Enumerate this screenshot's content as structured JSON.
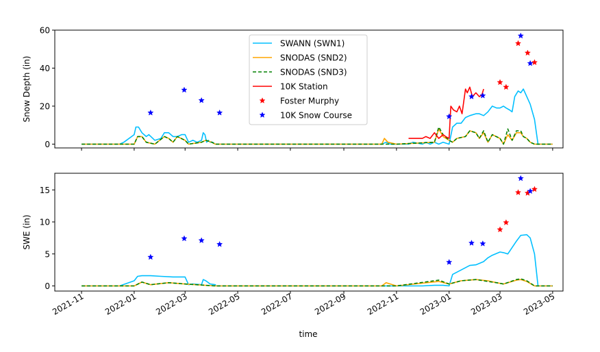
{
  "figure": {
    "x_axis_label": "time",
    "x_ticks": [
      "2021-11",
      "2022-01",
      "2022-03",
      "2022-05",
      "2022-07",
      "2022-09",
      "2022-11",
      "2023-01",
      "2023-03",
      "2023-05"
    ]
  },
  "legend": [
    {
      "label": "SWANN (SWN1)",
      "color": "#00bfff",
      "style": "solid"
    },
    {
      "label": "SNODAS (SND2)",
      "color": "#ffa500",
      "style": "solid"
    },
    {
      "label": "SNODAS (SND3)",
      "color": "#008000",
      "style": "dashed"
    },
    {
      "label": "10K Station",
      "color": "#ff0000",
      "style": "solid"
    },
    {
      "label": "Foster Murphy",
      "color": "#ff0000",
      "style": "star"
    },
    {
      "label": "10K Snow Course",
      "color": "#0000ff",
      "style": "star"
    }
  ],
  "chart_data": [
    {
      "type": "line",
      "ylabel": "Snow Depth (in)",
      "xlabel": "",
      "xlim": [
        "2021-10-01",
        "2023-05-13"
      ],
      "ylim": [
        -2,
        60
      ],
      "yticks": [
        0,
        20,
        40,
        60
      ],
      "series": [
        {
          "name": "SWANN (SWN1)",
          "x": [
            "2021-11-01",
            "2021-12-15",
            "2021-12-20",
            "2022-01-01",
            "2022-01-03",
            "2022-01-06",
            "2022-01-10",
            "2022-01-15",
            "2022-01-18",
            "2022-01-25",
            "2022-02-01",
            "2022-02-05",
            "2022-02-10",
            "2022-02-15",
            "2022-02-20",
            "2022-02-25",
            "2022-03-01",
            "2022-03-05",
            "2022-03-10",
            "2022-03-15",
            "2022-03-20",
            "2022-03-22",
            "2022-03-24",
            "2022-03-26",
            "2022-03-28",
            "2022-03-30",
            "2022-04-02",
            "2022-04-05",
            "2022-04-06",
            "2022-10-15",
            "2022-10-20",
            "2022-10-25",
            "2022-11-01",
            "2022-11-15",
            "2022-11-20",
            "2022-12-01",
            "2022-12-05",
            "2022-12-10",
            "2022-12-15",
            "2022-12-20",
            "2022-12-25",
            "2023-01-01",
            "2023-01-05",
            "2023-01-10",
            "2023-01-15",
            "2023-01-20",
            "2023-01-25",
            "2023-02-01",
            "2023-02-05",
            "2023-02-10",
            "2023-02-15",
            "2023-02-20",
            "2023-02-25",
            "2023-03-01",
            "2023-03-05",
            "2023-03-08",
            "2023-03-12",
            "2023-03-15",
            "2023-03-18",
            "2023-03-22",
            "2023-03-25",
            "2023-03-28",
            "2023-04-01",
            "2023-04-05",
            "2023-04-10",
            "2023-04-14",
            "2023-04-18",
            "2023-04-25",
            "2023-05-01"
          ],
          "values": [
            0,
            0,
            1,
            5,
            9,
            9,
            6,
            4,
            5,
            2,
            3,
            6,
            6,
            4,
            4,
            5,
            5,
            1,
            2,
            1,
            2,
            6,
            5,
            1,
            2,
            1,
            1,
            0,
            0,
            0,
            1,
            0,
            0,
            0,
            1,
            0,
            1,
            0,
            1,
            0,
            1,
            0,
            9,
            11,
            11,
            14,
            15,
            16,
            16,
            15,
            17,
            20,
            19,
            19,
            20,
            19,
            18,
            17,
            25,
            28,
            27,
            29,
            25,
            21,
            13,
            0,
            0,
            0,
            0
          ]
        },
        {
          "name": "SNODAS (SND2)",
          "x": [
            "2021-11-01",
            "2022-01-01",
            "2022-01-05",
            "2022-01-10",
            "2022-01-15",
            "2022-01-25",
            "2022-02-05",
            "2022-02-10",
            "2022-02-15",
            "2022-02-20",
            "2022-03-01",
            "2022-03-05",
            "2022-03-20",
            "2022-03-25",
            "2022-04-01",
            "2022-04-05",
            "2022-10-15",
            "2022-10-18",
            "2022-10-22",
            "2022-11-01",
            "2022-12-15",
            "2022-12-20",
            "2022-12-25",
            "2023-01-01",
            "2023-01-05",
            "2023-01-10",
            "2023-01-20",
            "2023-01-25",
            "2023-02-01",
            "2023-02-05",
            "2023-02-10",
            "2023-02-15",
            "2023-02-20",
            "2023-03-01",
            "2023-03-05",
            "2023-03-10",
            "2023-03-15",
            "2023-03-20",
            "2023-03-25",
            "2023-03-28",
            "2023-04-01",
            "2023-04-05",
            "2023-04-10",
            "2023-05-01"
          ],
          "values": [
            0,
            0,
            4,
            4,
            1,
            0,
            4,
            3,
            1,
            4,
            2,
            0,
            1,
            2,
            1,
            0,
            0,
            3,
            1,
            0,
            1,
            8,
            4,
            2,
            1,
            3,
            4,
            7,
            6,
            3,
            6,
            1,
            5,
            3,
            0,
            5,
            2,
            6,
            6,
            4,
            3,
            1,
            0,
            0
          ]
        },
        {
          "name": "SNODAS (SND3)",
          "x": [
            "2021-11-01",
            "2022-01-01",
            "2022-01-05",
            "2022-01-10",
            "2022-01-15",
            "2022-01-25",
            "2022-02-05",
            "2022-02-10",
            "2022-02-15",
            "2022-02-20",
            "2022-03-01",
            "2022-03-05",
            "2022-03-20",
            "2022-03-25",
            "2022-04-01",
            "2022-04-05",
            "2022-10-15",
            "2022-11-01",
            "2022-12-15",
            "2022-12-20",
            "2022-12-25",
            "2023-01-01",
            "2023-01-05",
            "2023-01-10",
            "2023-01-20",
            "2023-01-25",
            "2023-02-01",
            "2023-02-05",
            "2023-02-10",
            "2023-02-15",
            "2023-02-20",
            "2023-03-01",
            "2023-03-05",
            "2023-03-10",
            "2023-03-15",
            "2023-03-20",
            "2023-03-25",
            "2023-03-28",
            "2023-04-01",
            "2023-04-05",
            "2023-04-10",
            "2023-05-01"
          ],
          "values": [
            0,
            0,
            4,
            4,
            1,
            0,
            4,
            3,
            1,
            4,
            2,
            0,
            1,
            2,
            1,
            0,
            0,
            0,
            1,
            9,
            5,
            2,
            1,
            3,
            4,
            7,
            6,
            3,
            7,
            1,
            5,
            3,
            0,
            8,
            2,
            7,
            7,
            4,
            3,
            1,
            0,
            0
          ]
        },
        {
          "name": "10K Station",
          "x": [
            "2022-11-15",
            "2022-11-25",
            "2022-12-01",
            "2022-12-05",
            "2022-12-10",
            "2022-12-15",
            "2022-12-20",
            "2022-12-25",
            "2022-12-28",
            "2023-01-01",
            "2023-01-03",
            "2023-01-06",
            "2023-01-10",
            "2023-01-13",
            "2023-01-16",
            "2023-01-20",
            "2023-01-22",
            "2023-01-25",
            "2023-01-28",
            "2023-02-01",
            "2023-02-05",
            "2023-02-08",
            "2023-02-10"
          ],
          "values": [
            3,
            3,
            3,
            4,
            3,
            6,
            3,
            5,
            4,
            3,
            20,
            18,
            17,
            20,
            16,
            29,
            27,
            30,
            25,
            27,
            25,
            26,
            29
          ]
        },
        {
          "name": "Foster Murphy",
          "x": [
            "2023-03-01",
            "2023-03-08",
            "2023-03-22",
            "2023-04-02",
            "2023-04-10"
          ],
          "values": [
            32.5,
            30,
            53,
            48,
            43
          ]
        },
        {
          "name": "10K Snow Course",
          "x": [
            "2022-01-20",
            "2022-02-28",
            "2022-03-20",
            "2022-04-10",
            "2023-01-01",
            "2023-01-27",
            "2023-02-09",
            "2023-03-25",
            "2023-04-05"
          ],
          "values": [
            16.5,
            28.5,
            23,
            16.5,
            14.5,
            25,
            25.5,
            57,
            42.5
          ]
        }
      ]
    },
    {
      "type": "line",
      "ylabel": "SWE (in)",
      "xlabel": "time",
      "xlim": [
        "2021-10-01",
        "2023-05-13"
      ],
      "ylim": [
        -0.8,
        17.6
      ],
      "yticks": [
        0,
        5,
        10,
        15
      ],
      "series": [
        {
          "name": "SWANN (SWN1)",
          "x": [
            "2021-11-01",
            "2021-12-15",
            "2022-01-01",
            "2022-01-05",
            "2022-01-10",
            "2022-01-20",
            "2022-02-01",
            "2022-02-15",
            "2022-03-01",
            "2022-03-05",
            "2022-03-10",
            "2022-03-20",
            "2022-03-22",
            "2022-03-25",
            "2022-03-30",
            "2022-04-05",
            "2022-04-06",
            "2022-10-15",
            "2022-11-01",
            "2022-12-01",
            "2022-12-15",
            "2022-12-25",
            "2023-01-01",
            "2023-01-05",
            "2023-01-15",
            "2023-01-25",
            "2023-02-01",
            "2023-02-10",
            "2023-02-15",
            "2023-02-20",
            "2023-03-01",
            "2023-03-05",
            "2023-03-10",
            "2023-03-15",
            "2023-03-20",
            "2023-03-25",
            "2023-04-01",
            "2023-04-05",
            "2023-04-10",
            "2023-04-14",
            "2023-05-01"
          ],
          "values": [
            0,
            0,
            0.8,
            1.5,
            1.6,
            1.6,
            1.5,
            1.4,
            1.4,
            0.2,
            0.3,
            0.2,
            1.0,
            0.8,
            0.3,
            0.2,
            0,
            0,
            0,
            0,
            0.1,
            0.1,
            0,
            1.8,
            2.5,
            3.2,
            3.3,
            3.8,
            4.4,
            4.8,
            5.3,
            5.2,
            5.0,
            6.0,
            7.0,
            7.9,
            8.0,
            7.5,
            5.0,
            0,
            0
          ]
        },
        {
          "name": "SNODAS (SND2)",
          "x": [
            "2021-11-01",
            "2022-01-01",
            "2022-01-10",
            "2022-01-20",
            "2022-02-10",
            "2022-03-01",
            "2022-04-05",
            "2022-10-15",
            "2022-10-20",
            "2022-11-01",
            "2022-12-20",
            "2023-01-01",
            "2023-01-15",
            "2023-02-01",
            "2023-02-15",
            "2023-02-25",
            "2023-03-05",
            "2023-03-20",
            "2023-03-25",
            "2023-04-01",
            "2023-04-10",
            "2023-05-01"
          ],
          "values": [
            0,
            0,
            0.6,
            0.2,
            0.5,
            0.3,
            0,
            0,
            0.5,
            0,
            0.7,
            0.3,
            0.8,
            1.0,
            0.8,
            0.5,
            0.3,
            0.9,
            1.0,
            0.7,
            0,
            0
          ]
        },
        {
          "name": "SNODAS (SND3)",
          "x": [
            "2021-11-01",
            "2022-01-01",
            "2022-01-10",
            "2022-01-20",
            "2022-02-10",
            "2022-03-01",
            "2022-04-05",
            "2022-11-01",
            "2022-12-20",
            "2023-01-01",
            "2023-01-15",
            "2023-02-01",
            "2023-02-15",
            "2023-02-25",
            "2023-03-05",
            "2023-03-20",
            "2023-03-25",
            "2023-04-01",
            "2023-04-10",
            "2023-05-01"
          ],
          "values": [
            0,
            0,
            0.6,
            0.2,
            0.5,
            0.3,
            0,
            0,
            0.9,
            0.3,
            0.8,
            1.0,
            0.7,
            0.5,
            0.3,
            1.0,
            1.1,
            0.8,
            0,
            0
          ]
        },
        {
          "name": "Foster Murphy",
          "x": [
            "2023-03-01",
            "2023-03-08",
            "2023-03-22",
            "2023-04-02",
            "2023-04-10"
          ],
          "values": [
            8.8,
            9.9,
            14.6,
            14.5,
            15.1
          ]
        },
        {
          "name": "10K Snow Course",
          "x": [
            "2022-01-20",
            "2022-02-28",
            "2022-03-20",
            "2022-04-10",
            "2023-01-01",
            "2023-01-27",
            "2023-02-09",
            "2023-03-25",
            "2023-04-05"
          ],
          "values": [
            4.5,
            7.4,
            7.1,
            6.5,
            3.7,
            6.7,
            6.6,
            16.8,
            14.8
          ]
        }
      ]
    }
  ]
}
